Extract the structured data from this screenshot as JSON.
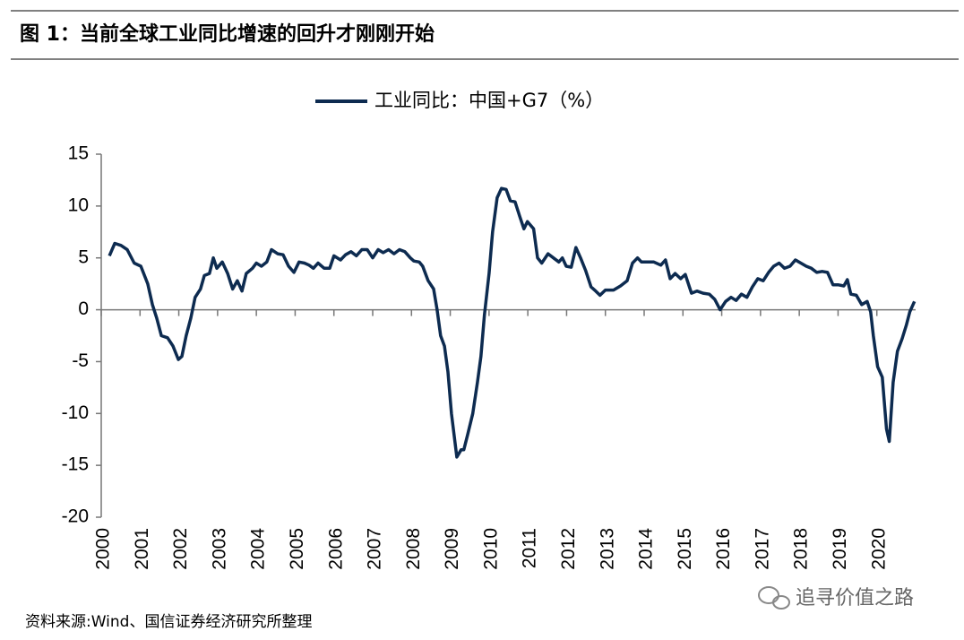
{
  "chart_data": {
    "type": "line",
    "title": "图 1：当前全球工业同比增速的回升才刚刚开始",
    "source": "资料来源:Wind、国信证券经济研究所整理",
    "watermark": "追寻价值之路",
    "x": [
      2000.21,
      2000.35,
      2000.51,
      2000.67,
      2000.85,
      2001.02,
      2001.2,
      2001.32,
      2001.43,
      2001.55,
      2001.71,
      2001.85,
      2001.99,
      2002.08,
      2002.19,
      2002.31,
      2002.42,
      2002.56,
      2002.66,
      2002.79,
      2002.89,
      2002.98,
      2003.12,
      2003.26,
      2003.39,
      2003.51,
      2003.63,
      2003.74,
      2003.9,
      2004.0,
      2004.13,
      2004.27,
      2004.39,
      2004.55,
      2004.69,
      2004.83,
      2004.97,
      2005.1,
      2005.24,
      2005.36,
      2005.47,
      2005.59,
      2005.75,
      2005.89,
      2006.0,
      2006.17,
      2006.3,
      2006.44,
      2006.58,
      2006.72,
      2006.86,
      2007.0,
      2007.14,
      2007.27,
      2007.41,
      2007.55,
      2007.69,
      2007.83,
      2007.97,
      2008.06,
      2008.2,
      2008.29,
      2008.43,
      2008.57,
      2008.66,
      2008.75,
      2008.85,
      2008.94,
      2009.03,
      2009.17,
      2009.28,
      2009.35,
      2009.45,
      2009.58,
      2009.7,
      2009.79,
      2009.88,
      2010.0,
      2010.09,
      2010.21,
      2010.32,
      2010.44,
      2010.55,
      2010.67,
      2010.79,
      2010.9,
      2010.99,
      2011.15,
      2011.25,
      2011.36,
      2011.52,
      2011.66,
      2011.8,
      2011.89,
      2011.99,
      2012.12,
      2012.24,
      2012.36,
      2012.49,
      2012.63,
      2012.75,
      2012.86,
      2013.0,
      2013.21,
      2013.39,
      2013.56,
      2013.7,
      2013.83,
      2013.93,
      2014.06,
      2014.25,
      2014.43,
      2014.55,
      2014.67,
      2014.8,
      2014.94,
      2015.06,
      2015.22,
      2015.36,
      2015.52,
      2015.68,
      2015.82,
      2015.96,
      2016.1,
      2016.24,
      2016.37,
      2016.51,
      2016.65,
      2016.79,
      2016.93,
      2017.07,
      2017.21,
      2017.34,
      2017.48,
      2017.62,
      2017.76,
      2017.9,
      2018.04,
      2018.18,
      2018.31,
      2018.45,
      2018.59,
      2018.73,
      2018.87,
      2019.01,
      2019.15,
      2019.24,
      2019.33,
      2019.47,
      2019.61,
      2019.75,
      2019.84,
      2019.91,
      2020.02,
      2020.14,
      2020.25,
      2020.32,
      2020.42,
      2020.53,
      2020.65,
      2020.76,
      2020.85,
      2020.97
    ],
    "series": [
      {
        "name": "工业同比：中国+G7（%）",
        "color": "#0d2b50",
        "values": [
          5.2,
          6.4,
          6.2,
          5.8,
          4.5,
          4.2,
          2.5,
          0.5,
          -0.8,
          -2.5,
          -2.7,
          -3.5,
          -4.8,
          -4.5,
          -2.5,
          -0.8,
          1.2,
          2.0,
          3.3,
          3.5,
          5.0,
          4.0,
          4.6,
          3.5,
          2.0,
          2.8,
          1.8,
          3.5,
          4.0,
          4.5,
          4.2,
          4.6,
          5.8,
          5.4,
          5.3,
          4.2,
          3.6,
          4.6,
          4.5,
          4.3,
          4.0,
          4.5,
          4.0,
          4.0,
          5.2,
          4.8,
          5.3,
          5.6,
          5.2,
          5.8,
          5.8,
          5.0,
          5.8,
          5.5,
          5.8,
          5.4,
          5.8,
          5.6,
          5.0,
          4.7,
          4.6,
          4.2,
          2.8,
          2.0,
          0.0,
          -2.5,
          -3.5,
          -6,
          -10,
          -14.2,
          -13.5,
          -13.5,
          -12,
          -10,
          -7,
          -4.5,
          -0.5,
          3.5,
          7.5,
          10.8,
          11.7,
          11.6,
          10.5,
          10.4,
          9.0,
          7.8,
          8.5,
          7.8,
          5.0,
          4.5,
          5.4,
          5.0,
          4.6,
          5.0,
          4.2,
          4.1,
          6.0,
          5.0,
          3.8,
          2.2,
          1.8,
          1.4,
          1.9,
          1.9,
          2.3,
          2.8,
          4.5,
          5.0,
          4.6,
          4.6,
          4.6,
          4.3,
          4.8,
          3.0,
          3.5,
          3.0,
          3.4,
          1.6,
          1.8,
          1.6,
          1.5,
          1.0,
          0.0,
          0.8,
          1.2,
          0.9,
          1.5,
          1.2,
          2.2,
          3.0,
          2.8,
          3.6,
          4.2,
          4.5,
          4.0,
          4.2,
          4.8,
          4.5,
          4.2,
          4.0,
          3.6,
          3.7,
          3.6,
          2.4,
          2.4,
          2.3,
          2.9,
          1.5,
          1.4,
          0.5,
          0.8,
          -0.2,
          -2.5,
          -5.5,
          -6.5,
          -11.5,
          -12.7,
          -7,
          -4,
          -2.8,
          -1.5,
          -0.2,
          0.8
        ]
      }
    ],
    "xlim": [
      2000,
      2021
    ],
    "xticks": [
      2000,
      2001,
      2002,
      2003,
      2004,
      2005,
      2006,
      2007,
      2008,
      2009,
      2010,
      2011,
      2012,
      2013,
      2014,
      2015,
      2016,
      2017,
      2018,
      2019,
      2020
    ],
    "ylim": [
      -20,
      15
    ],
    "yticks": [
      -20,
      -15,
      -10,
      -5,
      0,
      5,
      10,
      15
    ],
    "legend": "top"
  }
}
